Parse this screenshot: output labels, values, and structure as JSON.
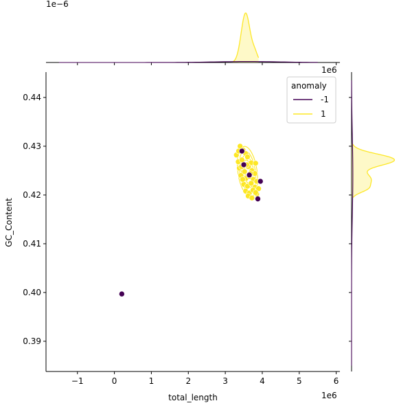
{
  "chart_data": {
    "type": "scatter",
    "subtype": "jointplot-with-kde",
    "xlabel": "total_length",
    "ylabel": "GC_Content",
    "x_offset_text": "1e6",
    "top_marginal_offset_text": "1e−6",
    "right_marginal_offset_text": "1e6",
    "xlim": [
      -1.85,
      6.1
    ],
    "ylim": [
      0.3838,
      0.4452
    ],
    "xticks": [
      -1,
      0,
      1,
      2,
      3,
      4,
      5,
      6
    ],
    "xtick_labels": [
      "−1",
      "0",
      "1",
      "2",
      "3",
      "4",
      "5",
      "6"
    ],
    "yticks": [
      0.39,
      0.4,
      0.41,
      0.42,
      0.43,
      0.44
    ],
    "ytick_labels": [
      "0.39",
      "0.40",
      "0.41",
      "0.42",
      "0.43",
      "0.44"
    ],
    "grid": false,
    "legend": {
      "title": "anomaly",
      "placement": "top-right",
      "entries": [
        {
          "label": "-1",
          "color": "#440154"
        },
        {
          "label": "1",
          "color": "#fde725"
        }
      ]
    },
    "series": [
      {
        "name": "-1",
        "color": "#440154",
        "points": [
          [
            0.2,
            0.3997
          ],
          [
            3.65,
            0.4241
          ],
          [
            3.95,
            0.4228
          ],
          [
            3.88,
            0.4192
          ],
          [
            3.45,
            0.429
          ],
          [
            3.5,
            0.4262
          ]
        ]
      },
      {
        "name": "1",
        "color": "#fde725",
        "points": [
          [
            3.3,
            0.4282
          ],
          [
            3.4,
            0.43
          ],
          [
            3.48,
            0.4292
          ],
          [
            3.55,
            0.4285
          ],
          [
            3.35,
            0.4268
          ],
          [
            3.45,
            0.4272
          ],
          [
            3.6,
            0.4278
          ],
          [
            3.7,
            0.4266
          ],
          [
            3.82,
            0.4265
          ],
          [
            3.38,
            0.4255
          ],
          [
            3.52,
            0.4248
          ],
          [
            3.62,
            0.4258
          ],
          [
            3.72,
            0.425
          ],
          [
            3.8,
            0.4244
          ],
          [
            3.42,
            0.424
          ],
          [
            3.56,
            0.4234
          ],
          [
            3.66,
            0.4238
          ],
          [
            3.76,
            0.4232
          ],
          [
            3.85,
            0.4228
          ],
          [
            3.5,
            0.4222
          ],
          [
            3.6,
            0.4218
          ],
          [
            3.7,
            0.4224
          ],
          [
            3.8,
            0.4216
          ],
          [
            3.9,
            0.4213
          ],
          [
            3.55,
            0.4208
          ],
          [
            3.65,
            0.4204
          ],
          [
            3.75,
            0.421
          ],
          [
            3.85,
            0.4202
          ],
          [
            3.62,
            0.4198
          ],
          [
            3.72,
            0.4194
          ],
          [
            3.82,
            0.4205
          ],
          [
            3.47,
            0.4232
          ],
          [
            3.58,
            0.4262
          ],
          [
            3.68,
            0.4244
          ],
          [
            3.36,
            0.429
          ],
          [
            3.44,
            0.4258
          ]
        ]
      }
    ],
    "marginal_x": {
      "series": "1",
      "peak_x": 3.55,
      "x_min": 3.2,
      "x_max": 3.9
    },
    "marginal_y": {
      "series": "1",
      "peak_y": 0.4272,
      "y_min": 0.4195,
      "y_max": 0.4305
    }
  }
}
